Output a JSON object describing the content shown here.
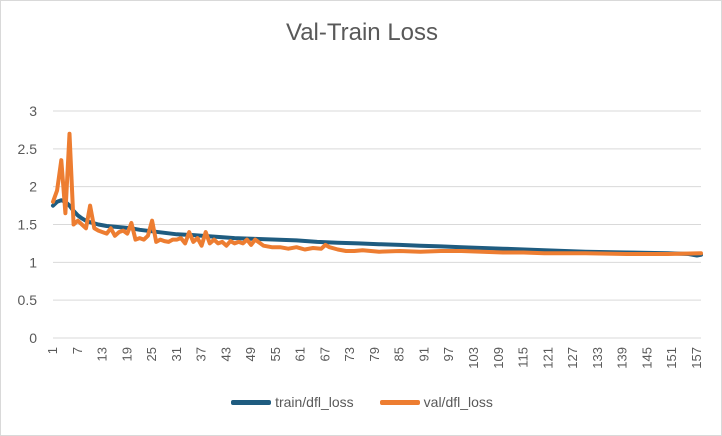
{
  "chart_data": {
    "type": "line",
    "title": "Val-Train Loss",
    "xlabel": "",
    "ylabel": "",
    "ylim": [
      0,
      3
    ],
    "yticks": [
      "0",
      "0.5",
      "1",
      "1.5",
      "2",
      "2.5",
      "3"
    ],
    "xlim": [
      1,
      158
    ],
    "xticks": [
      1,
      7,
      13,
      19,
      25,
      31,
      37,
      43,
      49,
      55,
      61,
      67,
      73,
      79,
      85,
      91,
      97,
      103,
      109,
      115,
      121,
      127,
      133,
      139,
      145,
      151,
      157
    ],
    "grid": "horizontal",
    "legend_position": "bottom",
    "series": [
      {
        "name": "train/dfl_loss",
        "color": "#1f5c80",
        "x": [
          1,
          2,
          3,
          4,
          5,
          6,
          7,
          8,
          9,
          10,
          12,
          14,
          16,
          18,
          20,
          22,
          25,
          28,
          31,
          35,
          40,
          45,
          50,
          55,
          60,
          65,
          70,
          75,
          80,
          85,
          90,
          95,
          100,
          110,
          120,
          130,
          140,
          150,
          155,
          157,
          158
        ],
        "values": [
          1.75,
          1.8,
          1.82,
          1.8,
          1.75,
          1.68,
          1.62,
          1.58,
          1.55,
          1.53,
          1.5,
          1.48,
          1.47,
          1.46,
          1.45,
          1.43,
          1.41,
          1.39,
          1.37,
          1.36,
          1.34,
          1.32,
          1.31,
          1.3,
          1.29,
          1.27,
          1.26,
          1.25,
          1.24,
          1.23,
          1.22,
          1.21,
          1.2,
          1.18,
          1.16,
          1.14,
          1.13,
          1.12,
          1.11,
          1.09,
          1.1
        ]
      },
      {
        "name": "val/dfl_loss",
        "color": "#ed7d31",
        "x": [
          1,
          2,
          3,
          4,
          5,
          6,
          7,
          8,
          9,
          10,
          11,
          12,
          13,
          14,
          15,
          16,
          17,
          18,
          19,
          20,
          21,
          22,
          23,
          24,
          25,
          26,
          27,
          28,
          29,
          30,
          31,
          32,
          33,
          34,
          35,
          36,
          37,
          38,
          39,
          40,
          41,
          42,
          43,
          44,
          45,
          46,
          47,
          48,
          49,
          50,
          52,
          54,
          56,
          58,
          60,
          62,
          64,
          66,
          67,
          68,
          70,
          72,
          74,
          76,
          80,
          85,
          90,
          95,
          100,
          105,
          110,
          115,
          120,
          130,
          140,
          150,
          158
        ],
        "values": [
          1.8,
          1.95,
          2.35,
          1.65,
          2.7,
          1.5,
          1.55,
          1.5,
          1.45,
          1.75,
          1.45,
          1.42,
          1.4,
          1.38,
          1.45,
          1.35,
          1.4,
          1.42,
          1.38,
          1.52,
          1.3,
          1.32,
          1.3,
          1.35,
          1.55,
          1.27,
          1.3,
          1.28,
          1.27,
          1.3,
          1.3,
          1.32,
          1.25,
          1.4,
          1.27,
          1.32,
          1.22,
          1.4,
          1.25,
          1.3,
          1.25,
          1.27,
          1.22,
          1.28,
          1.25,
          1.27,
          1.25,
          1.3,
          1.23,
          1.3,
          1.22,
          1.2,
          1.2,
          1.18,
          1.2,
          1.17,
          1.19,
          1.18,
          1.23,
          1.2,
          1.17,
          1.15,
          1.15,
          1.16,
          1.14,
          1.15,
          1.14,
          1.15,
          1.15,
          1.14,
          1.13,
          1.13,
          1.12,
          1.12,
          1.11,
          1.11,
          1.12
        ]
      }
    ]
  }
}
